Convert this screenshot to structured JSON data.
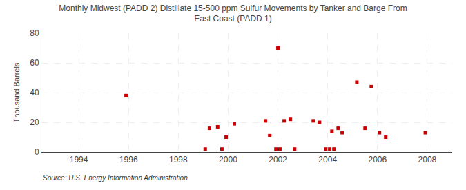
{
  "chart_data": {
    "type": "scatter",
    "title": "Monthly Midwest (PADD 2) Distillate 15-500 ppm Sulfur Movements by Tanker and Barge From\nEast Coast (PADD 1)",
    "ylabel": "Thousand Barrels",
    "annotations": [
      "Source: U.S. Energy Information Administration"
    ],
    "color": "#cc0000",
    "marker": "square",
    "grid": true,
    "xlim": [
      1992.5,
      2009.0
    ],
    "ylim": [
      0,
      80
    ],
    "xticks": [
      1994,
      1996,
      1998,
      2000,
      2002,
      2004,
      2006,
      2008
    ],
    "yticks": [
      0,
      20,
      40,
      60,
      80
    ],
    "x": [
      1995.9,
      1999.25,
      1999.58,
      1999.92,
      2000.25,
      2001.5,
      2001.67,
      2002.0,
      2002.25,
      2002.5,
      2003.42,
      2003.67,
      2004.17,
      2004.42,
      2004.58,
      2005.17,
      2005.75,
      2006.08,
      2006.33,
      2007.92,
      1999.08,
      1999.75,
      2001.92,
      2002.08,
      2002.67,
      2003.92,
      2004.08,
      2004.25,
      2005.5
    ],
    "values": [
      38,
      16,
      17,
      10,
      19,
      21,
      11,
      70,
      21,
      22,
      21,
      20,
      14,
      16,
      13,
      47,
      44,
      13,
      10,
      13,
      2,
      2,
      2,
      2,
      2,
      2,
      2,
      2,
      16
    ]
  }
}
